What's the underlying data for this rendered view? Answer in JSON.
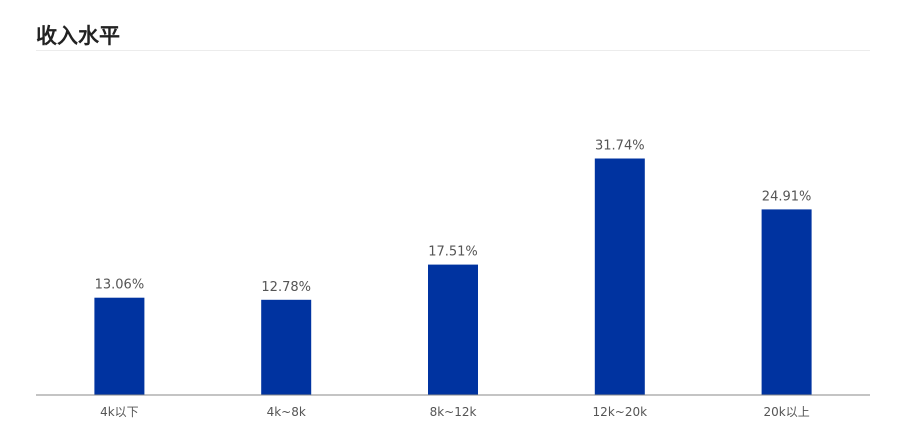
{
  "header": {
    "title": "收入水平"
  },
  "colors": {
    "bar": "#0033a0",
    "axis": "#888888",
    "label": "#555555"
  },
  "chart_data": {
    "type": "bar",
    "title": "收入水平",
    "categories": [
      "4k以下",
      "4k~8k",
      "8k~12k",
      "12k~20k",
      "20k以上"
    ],
    "values": [
      13.06,
      12.78,
      17.51,
      31.74,
      24.91
    ],
    "data_labels": [
      "13.06%",
      "12.78%",
      "17.51%",
      "31.74%",
      "24.91%"
    ],
    "xlabel": "",
    "ylabel": "",
    "ylim": [
      0,
      32
    ],
    "grid": false,
    "legend": "none"
  }
}
